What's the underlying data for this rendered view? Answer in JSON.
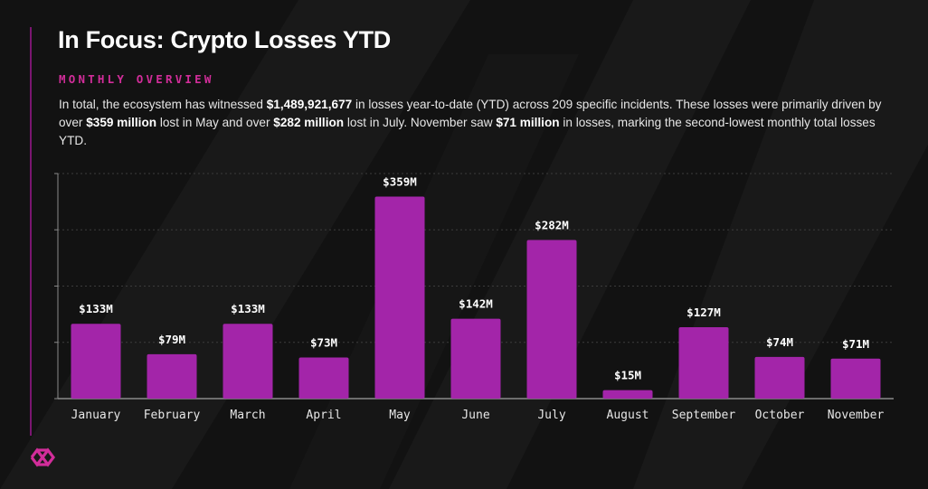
{
  "page": {
    "title": "In Focus: Crypto Losses YTD",
    "subtitle": "MONTHLY OVERVIEW",
    "summary": {
      "p1": "In total, the ecosystem has witnessed ",
      "b1": "$1,489,921,677",
      "p2": " in losses year-to-date (YTD) across 209 specific incidents. These losses were primarily driven by over ",
      "b2": "$359 million",
      "p3": " lost in May and over ",
      "b3": "$282 million",
      "p4": " lost in July. November saw ",
      "b4": "$71 million",
      "p5": " in losses, marking the second-lowest monthly total losses YTD."
    }
  },
  "colors": {
    "background": "#121212",
    "bar": "#a325a9",
    "accent": "#d22d9a",
    "grid": "#3c3c3c",
    "axis": "#8a8a8a",
    "text": "#e6e6e6"
  },
  "chart_data": {
    "type": "bar",
    "title": "",
    "xlabel": "",
    "ylabel": "",
    "categories": [
      "January",
      "February",
      "March",
      "April",
      "May",
      "June",
      "July",
      "August",
      "September",
      "October",
      "November"
    ],
    "values": [
      133,
      79,
      133,
      73,
      359,
      142,
      282,
      15,
      127,
      74,
      71
    ],
    "labels": [
      "$133M",
      "$79M",
      "$133M",
      "$73M",
      "$359M",
      "$142M",
      "$282M",
      "$15M",
      "$127M",
      "$74M",
      "$71M"
    ],
    "unit": "USD millions",
    "ylim": [
      0,
      400
    ],
    "grid": true,
    "legend": "none"
  }
}
